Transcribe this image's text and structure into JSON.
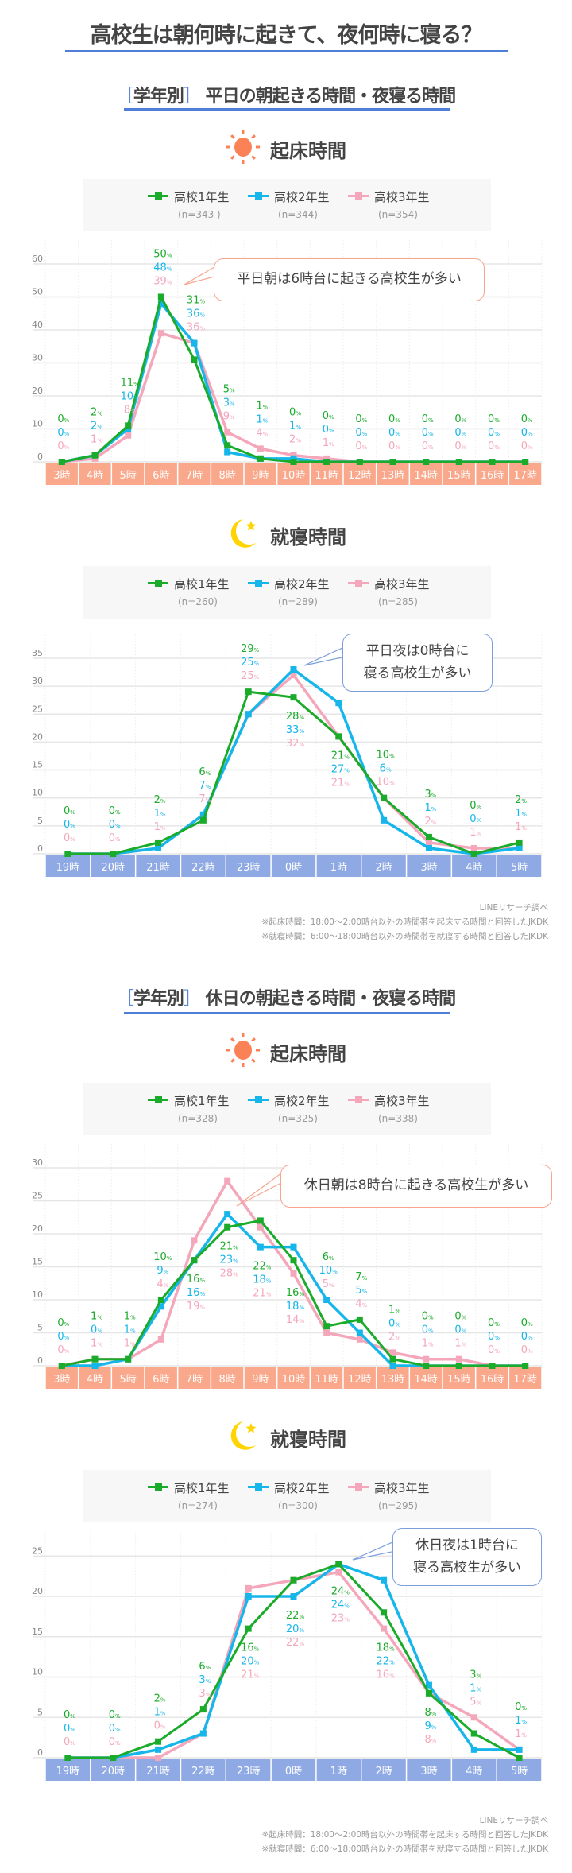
{
  "title": "高校生は朝何時に起きて、夜何時に寝る？",
  "sections": [
    {
      "bracket_open": "［",
      "tag": "学年別",
      "bracket_close": "］",
      "title": "平日の朝起きる時間・夜寝る時間"
    },
    {
      "bracket_open": "［",
      "tag": "学年別",
      "bracket_close": "］",
      "title": "休日の朝起きる時間・夜寝る時間"
    }
  ],
  "colors": {
    "grade1": "#1aab2a",
    "grade2": "#17b6ea",
    "grade3": "#f4a7bb",
    "accent": "#4f7fd8",
    "wake_axis": "#f9a88c",
    "sleep_axis": "#8ea9e3",
    "sun": "#fb8157",
    "moon": "#ffd400"
  },
  "footer_notes": {
    "source": "LINEリサーチ調べ",
    "note_wake": "※起床時間：18:00～2:00時台以外の時間帯を起床する時間と回答したJKDK",
    "note_sleep": "※就寝時間：6:00～18:00時台以外の時間帯を就寝する時間と回答したJKDK"
  },
  "chart_data": [
    {
      "type": "line",
      "heading": "起床時間",
      "icon": "sun-icon",
      "categories": [
        "3時",
        "4時",
        "5時",
        "6時",
        "7時",
        "8時",
        "9時",
        "10時",
        "11時",
        "12時",
        "13時",
        "14時",
        "15時",
        "16時",
        "17時"
      ],
      "yticks": [
        "0",
        "10",
        "20",
        "30",
        "40",
        "50",
        "60"
      ],
      "ylim": [
        0,
        60
      ],
      "unit": "%",
      "grid": true,
      "legend_position": "top",
      "annotation": "平日朝は6時台に起きる高校生が多い",
      "series": [
        {
          "name": "高校1年生",
          "n": "(n=343 )",
          "values": [
            0,
            2,
            11,
            50,
            31,
            5,
            1,
            0,
            0,
            0,
            0,
            0,
            0,
            0,
            0
          ]
        },
        {
          "name": "高校2年生",
          "n": "(n=344)",
          "values": [
            0,
            2,
            10,
            48,
            36,
            3,
            1,
            1,
            0,
            0,
            0,
            0,
            0,
            0,
            0
          ]
        },
        {
          "name": "高校3年生",
          "n": "(n=354)",
          "values": [
            0,
            1,
            8,
            39,
            36,
            9,
            4,
            2,
            1,
            0,
            0,
            0,
            0,
            0,
            0
          ]
        }
      ]
    },
    {
      "type": "line",
      "heading": "就寝時間",
      "icon": "moon-icon",
      "categories": [
        "19時",
        "20時",
        "21時",
        "22時",
        "23時",
        "0時",
        "1時",
        "2時",
        "3時",
        "4時",
        "5時"
      ],
      "yticks": [
        "0",
        "5",
        "10",
        "15",
        "20",
        "25",
        "30",
        "35"
      ],
      "ylim": [
        0,
        35
      ],
      "unit": "%",
      "grid": true,
      "legend_position": "top",
      "annotation": "平日夜は0時台に\n寝る高校生が多い",
      "series": [
        {
          "name": "高校1年生",
          "n": "(n=260)",
          "values": [
            0,
            0,
            2,
            6,
            29,
            28,
            21,
            10,
            3,
            0,
            2
          ]
        },
        {
          "name": "高校2年生",
          "n": "(n=289)",
          "values": [
            0,
            0,
            1,
            7,
            25,
            33,
            27,
            6,
            1,
            0,
            1
          ]
        },
        {
          "name": "高校3年生",
          "n": "(n=285)",
          "values": [
            0,
            0,
            1,
            7,
            25,
            32,
            21,
            10,
            2,
            1,
            1
          ]
        }
      ]
    },
    {
      "type": "line",
      "heading": "起床時間",
      "icon": "sun-icon",
      "categories": [
        "3時",
        "4時",
        "5時",
        "6時",
        "7時",
        "8時",
        "9時",
        "10時",
        "11時",
        "12時",
        "13時",
        "14時",
        "15時",
        "16時",
        "17時"
      ],
      "yticks": [
        "0",
        "5",
        "10",
        "15",
        "20",
        "25",
        "30"
      ],
      "ylim": [
        0,
        30
      ],
      "unit": "%",
      "grid": true,
      "legend_position": "top",
      "annotation": "休日朝は8時台に起きる高校生が多い",
      "series": [
        {
          "name": "高校1年生",
          "n": "(n=328)",
          "values": [
            0,
            1,
            1,
            10,
            16,
            21,
            22,
            16,
            6,
            7,
            1,
            0,
            0,
            0,
            0
          ]
        },
        {
          "name": "高校2年生",
          "n": "(n=325)",
          "values": [
            0,
            0,
            1,
            9,
            16,
            23,
            18,
            18,
            10,
            5,
            0,
            0,
            0,
            0,
            0
          ]
        },
        {
          "name": "高校3年生",
          "n": "(n=338)",
          "values": [
            0,
            1,
            1,
            4,
            19,
            28,
            21,
            14,
            5,
            4,
            2,
            1,
            1,
            0,
            0
          ]
        }
      ]
    },
    {
      "type": "line",
      "heading": "就寝時間",
      "icon": "moon-icon",
      "categories": [
        "19時",
        "20時",
        "21時",
        "22時",
        "23時",
        "0時",
        "1時",
        "2時",
        "3時",
        "4時",
        "5時"
      ],
      "yticks": [
        "0",
        "5",
        "10",
        "15",
        "20",
        "25"
      ],
      "ylim": [
        0,
        25
      ],
      "unit": "%",
      "grid": true,
      "legend_position": "top",
      "annotation": "休日夜は1時台に\n寝る高校生が多い",
      "series": [
        {
          "name": "高校1年生",
          "n": "(n=274)",
          "values": [
            0,
            0,
            2,
            6,
            16,
            22,
            24,
            18,
            8,
            3,
            0
          ]
        },
        {
          "name": "高校2年生",
          "n": "(n=300)",
          "values": [
            0,
            0,
            1,
            3,
            20,
            20,
            24,
            22,
            9,
            1,
            1
          ]
        },
        {
          "name": "高校3年生",
          "n": "(n=295)",
          "values": [
            0,
            0,
            0,
            3,
            21,
            22,
            23,
            16,
            8,
            5,
            1
          ]
        }
      ]
    }
  ]
}
